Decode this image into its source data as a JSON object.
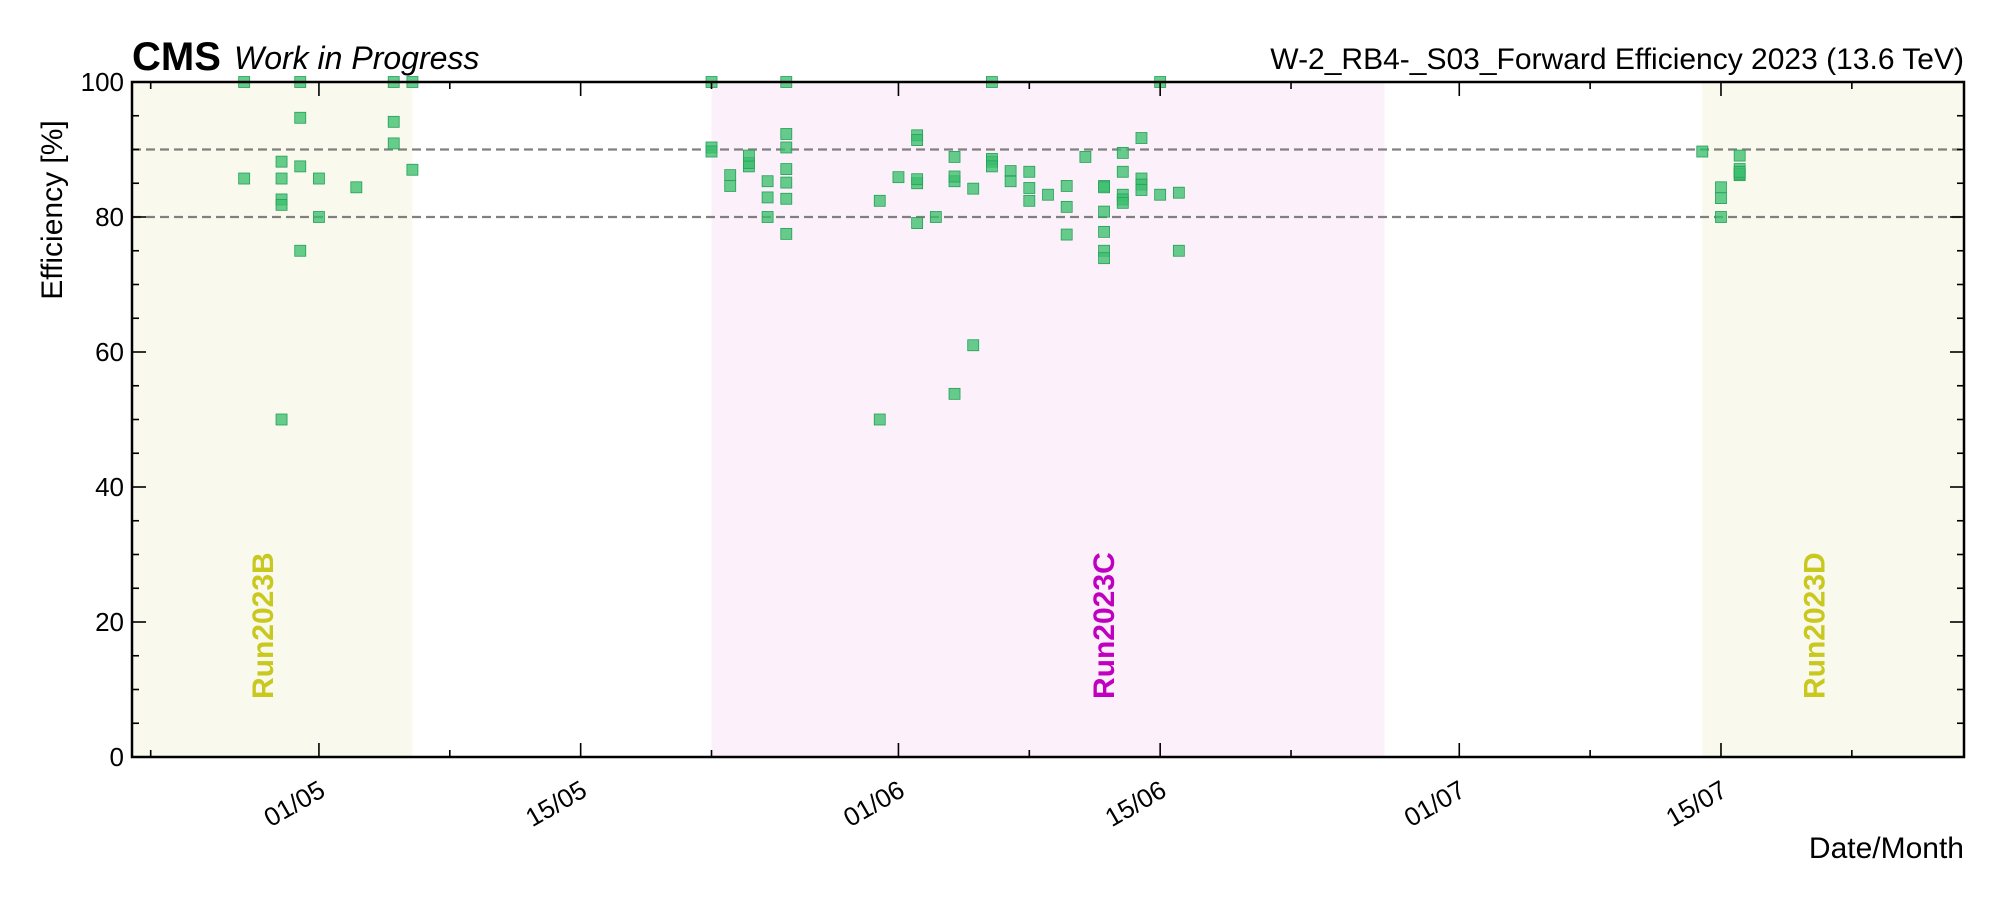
{
  "chart_data": {
    "type": "scatter",
    "header": {
      "experiment": "CMS",
      "status": "Work in Progress",
      "title": "W-2_RB4-_S03_Forward Efficiency 2023 (13.6 TeV)"
    },
    "xlabel": "Date/Month",
    "ylabel": "Efficiency [%]",
    "year": 2023,
    "xlim": [
      "2023-04-21",
      "2023-07-28"
    ],
    "ylim": [
      0,
      100
    ],
    "yticks": [
      0,
      20,
      40,
      60,
      80,
      100
    ],
    "xticks": [
      {
        "date": "2023-05-01",
        "label": "01/05"
      },
      {
        "date": "2023-05-15",
        "label": "15/05"
      },
      {
        "date": "2023-06-01",
        "label": "01/06"
      },
      {
        "date": "2023-06-15",
        "label": "15/06"
      },
      {
        "date": "2023-07-01",
        "label": "01/07"
      },
      {
        "date": "2023-07-15",
        "label": "15/07"
      }
    ],
    "reference_lines": [
      80,
      90
    ],
    "runs": [
      {
        "name": "Run2023B",
        "start": "2023-04-21",
        "end": "2023-05-06",
        "fill": "#f9f9ee",
        "label_color": "#c8c81e",
        "label_date": "2023-04-28"
      },
      {
        "name": "Run2023C",
        "start": "2023-05-22",
        "end": "2023-06-27",
        "fill": "#fcf0fa",
        "label_color": "#c000c0",
        "label_date": "2023-06-12"
      },
      {
        "name": "Run2023D",
        "start": "2023-07-14",
        "end": "2023-07-28",
        "fill": "#f9f9ee",
        "label_color": "#c8c81e",
        "label_date": "2023-07-20"
      }
    ],
    "marker_color": "#3cbf6e",
    "points": [
      [
        "2023-04-27",
        100
      ],
      [
        "2023-04-27",
        85.7
      ],
      [
        "2023-04-29",
        50
      ],
      [
        "2023-04-29",
        85.7
      ],
      [
        "2023-04-29",
        82.6
      ],
      [
        "2023-04-29",
        88.2
      ],
      [
        "2023-04-29",
        81.8
      ],
      [
        "2023-04-30",
        94.7
      ],
      [
        "2023-04-30",
        75
      ],
      [
        "2023-04-30",
        87.5
      ],
      [
        "2023-04-30",
        100
      ],
      [
        "2023-05-01",
        85.7
      ],
      [
        "2023-05-01",
        80
      ],
      [
        "2023-05-03",
        84.4
      ],
      [
        "2023-05-05",
        100
      ],
      [
        "2023-05-05",
        94.1
      ],
      [
        "2023-05-05",
        90.9
      ],
      [
        "2023-05-06",
        87
      ],
      [
        "2023-05-06",
        100
      ],
      [
        "2023-05-22",
        100
      ],
      [
        "2023-05-22",
        90.3
      ],
      [
        "2023-05-22",
        89.7
      ],
      [
        "2023-05-23",
        84.6
      ],
      [
        "2023-05-23",
        86.2
      ],
      [
        "2023-05-24",
        87.5
      ],
      [
        "2023-05-24",
        88
      ],
      [
        "2023-05-24",
        89.1
      ],
      [
        "2023-05-25",
        82.9
      ],
      [
        "2023-05-25",
        85.3
      ],
      [
        "2023-05-25",
        80
      ],
      [
        "2023-05-26",
        85.1
      ],
      [
        "2023-05-26",
        87.1
      ],
      [
        "2023-05-26",
        77.5
      ],
      [
        "2023-05-26",
        92.3
      ],
      [
        "2023-05-26",
        90.3
      ],
      [
        "2023-05-26",
        100
      ],
      [
        "2023-05-26",
        82.7
      ],
      [
        "2023-05-31",
        82.4
      ],
      [
        "2023-05-31",
        50
      ],
      [
        "2023-06-01",
        85.9
      ],
      [
        "2023-06-02",
        85
      ],
      [
        "2023-06-02",
        79.1
      ],
      [
        "2023-06-02",
        92.1
      ],
      [
        "2023-06-02",
        91.4
      ],
      [
        "2023-06-02",
        85.6
      ],
      [
        "2023-06-03",
        80
      ],
      [
        "2023-06-04",
        53.8
      ],
      [
        "2023-06-04",
        85.3
      ],
      [
        "2023-06-04",
        88.9
      ],
      [
        "2023-06-04",
        86
      ],
      [
        "2023-06-05",
        84.2
      ],
      [
        "2023-06-05",
        61
      ],
      [
        "2023-06-06",
        88.2
      ],
      [
        "2023-06-06",
        88.6
      ],
      [
        "2023-06-06",
        87.5
      ],
      [
        "2023-06-06",
        100
      ],
      [
        "2023-06-07",
        86.8
      ],
      [
        "2023-06-07",
        85.3
      ],
      [
        "2023-06-08",
        82.4
      ],
      [
        "2023-06-08",
        86.7
      ],
      [
        "2023-06-08",
        84.3
      ],
      [
        "2023-06-09",
        83.3
      ],
      [
        "2023-06-10",
        81.5
      ],
      [
        "2023-06-10",
        84.6
      ],
      [
        "2023-06-10",
        77.4
      ],
      [
        "2023-06-11",
        88.9
      ],
      [
        "2023-06-12",
        84.6
      ],
      [
        "2023-06-12",
        84.4
      ],
      [
        "2023-06-12",
        80.8
      ],
      [
        "2023-06-12",
        75
      ],
      [
        "2023-06-12",
        73.9
      ],
      [
        "2023-06-12",
        77.8
      ],
      [
        "2023-06-13",
        89.5
      ],
      [
        "2023-06-13",
        86.7
      ],
      [
        "2023-06-13",
        83.3
      ],
      [
        "2023-06-13",
        82.6
      ],
      [
        "2023-06-13",
        82.1
      ],
      [
        "2023-06-14",
        91.7
      ],
      [
        "2023-06-14",
        85.7
      ],
      [
        "2023-06-14",
        84.8
      ],
      [
        "2023-06-14",
        84
      ],
      [
        "2023-06-15",
        100
      ],
      [
        "2023-06-15",
        83.3
      ],
      [
        "2023-06-16",
        83.6
      ],
      [
        "2023-06-16",
        75
      ],
      [
        "2023-07-14",
        89.7
      ],
      [
        "2023-07-15",
        80
      ],
      [
        "2023-07-15",
        82.8
      ],
      [
        "2023-07-15",
        84.4
      ],
      [
        "2023-07-16",
        86.2
      ],
      [
        "2023-07-16",
        87.1
      ],
      [
        "2023-07-16",
        89.1
      ],
      [
        "2023-07-16",
        86.4
      ],
      [
        "2023-07-16",
        86.7
      ]
    ]
  }
}
